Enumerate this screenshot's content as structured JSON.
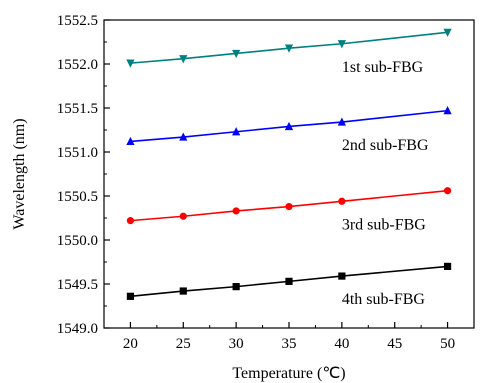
{
  "chart_data": {
    "type": "line",
    "title": "",
    "xlabel": "Temperature (℃)",
    "ylabel": "Wavelength (nm)",
    "x": [
      20,
      25,
      30,
      35,
      40,
      50
    ],
    "xlim": [
      17.5,
      52.5
    ],
    "ylim": [
      1549.0,
      1552.5
    ],
    "xticks": [
      20,
      25,
      30,
      35,
      40,
      45,
      50
    ],
    "yticks": [
      1549.0,
      1549.5,
      1550.0,
      1550.5,
      1551.0,
      1551.5,
      1552.0,
      1552.5
    ],
    "xtick_labels": [
      "20",
      "25",
      "30",
      "35",
      "40",
      "45",
      "50"
    ],
    "ytick_labels": [
      "1549.0",
      "1549.5",
      "1550.0",
      "1550.5",
      "1551.0",
      "1551.5",
      "1552.0",
      "1552.5"
    ],
    "grid": false,
    "series": [
      {
        "name": "1st sub-FBG",
        "color": "#008080",
        "marker": "triangle-down",
        "values": [
          1552.01,
          1552.06,
          1552.12,
          1552.18,
          1552.23,
          1552.36
        ]
      },
      {
        "name": "2nd sub-FBG",
        "color": "#0000ff",
        "marker": "triangle-up",
        "values": [
          1551.12,
          1551.17,
          1551.23,
          1551.29,
          1551.34,
          1551.47
        ]
      },
      {
        "name": "3rd sub-FBG",
        "color": "#ff0000",
        "marker": "circle",
        "values": [
          1550.22,
          1550.27,
          1550.33,
          1550.38,
          1550.44,
          1550.56
        ]
      },
      {
        "name": "4th sub-FBG",
        "color": "#000000",
        "marker": "square",
        "values": [
          1549.36,
          1549.42,
          1549.47,
          1549.53,
          1549.59,
          1549.7
        ]
      }
    ]
  }
}
